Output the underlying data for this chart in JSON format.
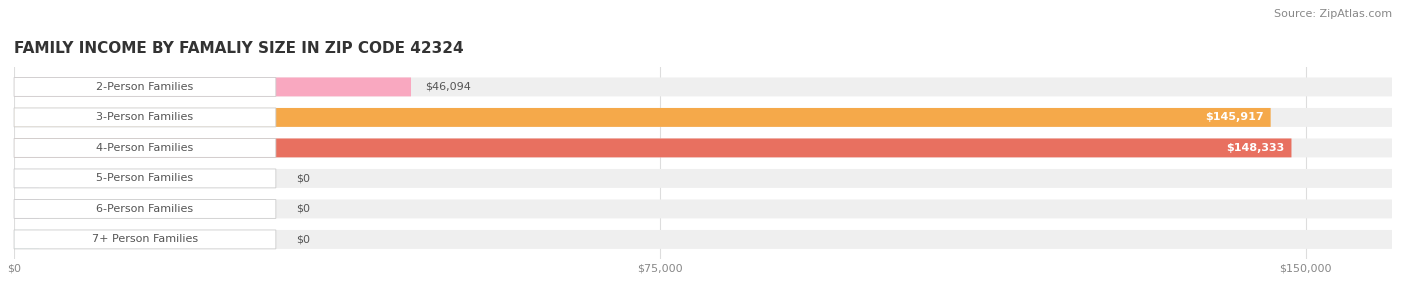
{
  "title": "FAMILY INCOME BY FAMALIY SIZE IN ZIP CODE 42324",
  "source": "Source: ZipAtlas.com",
  "categories": [
    "2-Person Families",
    "3-Person Families",
    "4-Person Families",
    "5-Person Families",
    "6-Person Families",
    "7+ Person Families"
  ],
  "values": [
    46094,
    145917,
    148333,
    0,
    0,
    0
  ],
  "bar_colors": [
    "#F9A8C0",
    "#F5A94A",
    "#E87060",
    "#A8B8E0",
    "#C8A8D8",
    "#70C8C0"
  ],
  "value_labels": [
    "$46,094",
    "$145,917",
    "$148,333",
    "$0",
    "$0",
    "$0"
  ],
  "x_max": 160000,
  "x_ticks": [
    0,
    75000,
    150000
  ],
  "x_tick_labels": [
    "$0",
    "$75,000",
    "$150,000"
  ],
  "background_color": "#ffffff",
  "bar_background_color": "#efefef",
  "title_fontsize": 11,
  "source_fontsize": 8,
  "label_fontsize": 8,
  "value_fontsize": 8
}
